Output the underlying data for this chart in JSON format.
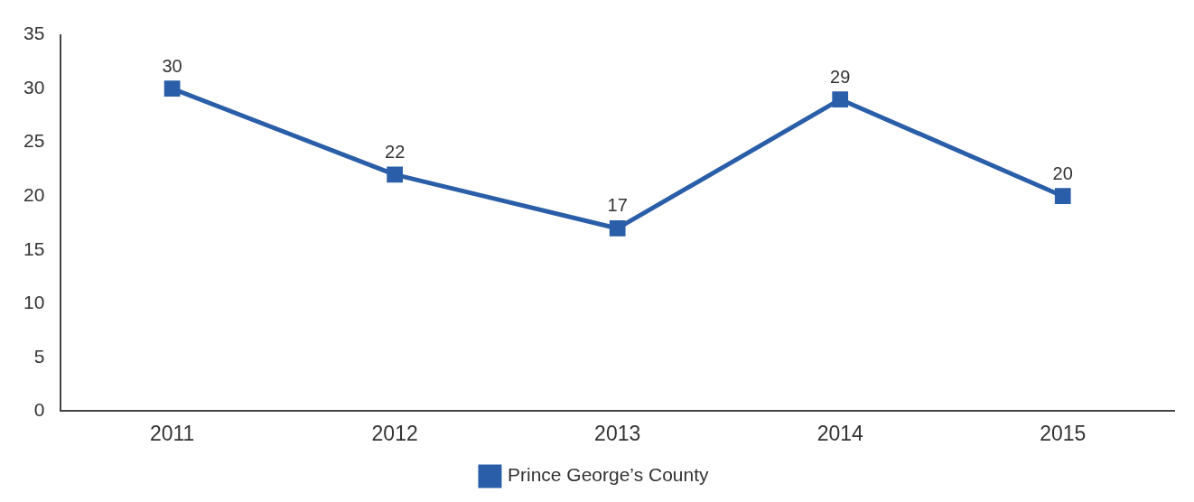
{
  "chart_data": {
    "type": "line",
    "categories": [
      "2011",
      "2012",
      "2013",
      "2014",
      "2015"
    ],
    "series": [
      {
        "name": "Prince George’s County",
        "color": "#2a5ea8",
        "values": [
          30,
          22,
          17,
          29,
          20
        ]
      }
    ],
    "ylim": [
      0,
      35
    ],
    "yticks": [
      0,
      5,
      10,
      15,
      20,
      25,
      30,
      35
    ],
    "grid": false,
    "legend": "bottom",
    "marker": "square",
    "line_style": "solid",
    "data_labels": true
  }
}
